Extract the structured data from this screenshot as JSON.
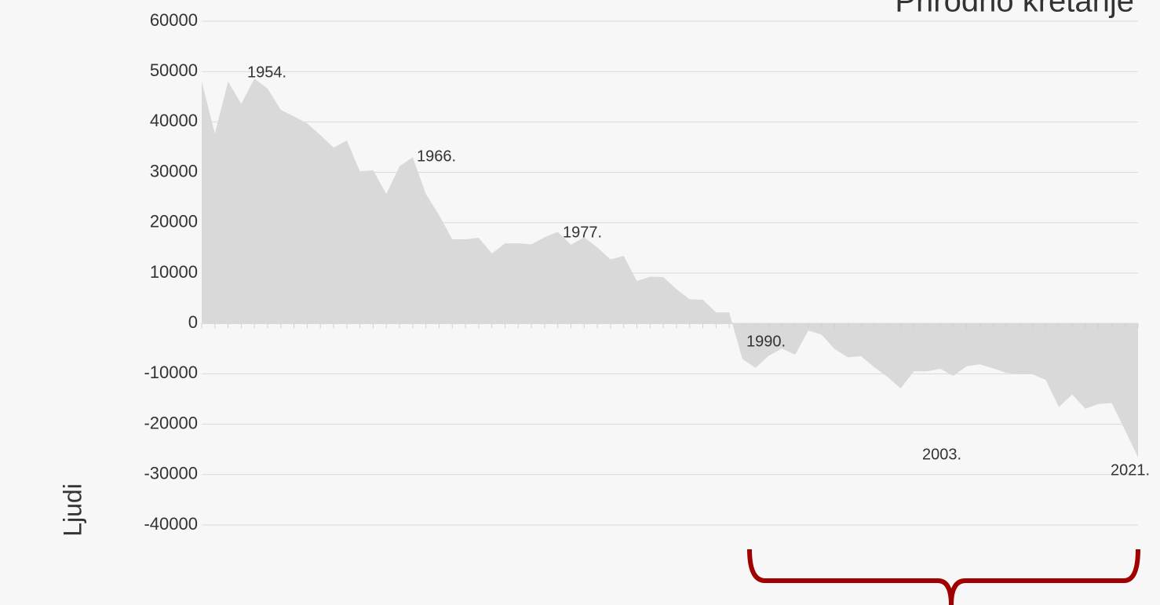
{
  "chart_data": {
    "type": "area",
    "title": "Prirodno kretanje",
    "y_label": "Ljudi",
    "color": "#d9d9d9",
    "grid": true,
    "ylim": [
      -40000,
      60000
    ],
    "yticks": [
      -40000,
      -30000,
      -20000,
      -10000,
      0,
      10000,
      20000,
      30000,
      40000,
      50000,
      60000
    ],
    "values": [
      48000,
      37700,
      48000,
      43600,
      48600,
      46600,
      42400,
      41100,
      39700,
      37400,
      34900,
      36300,
      30200,
      30400,
      25700,
      31200,
      33000,
      25700,
      21500,
      16700,
      16700,
      17000,
      13900,
      15900,
      15900,
      15700,
      17100,
      18200,
      15600,
      17100,
      15100,
      12700,
      13400,
      8400,
      9300,
      9200,
      6800,
      4800,
      4700,
      2200,
      2200,
      -7100,
      -8800,
      -6400,
      -5000,
      -6200,
      -1400,
      -2200,
      -5100,
      -6700,
      -6500,
      -8700,
      -10600,
      -12900,
      -9500,
      -9500,
      -9000,
      -10400,
      -8500,
      -8100,
      -8900,
      -9800,
      -10100,
      -10100,
      -11200,
      -16600,
      -14100,
      -16900,
      -16000,
      -15800,
      -21100,
      -26600
    ],
    "annotations": [
      "1954.",
      "1966.",
      "1977.",
      "1990.",
      "2003.",
      "2021."
    ]
  }
}
